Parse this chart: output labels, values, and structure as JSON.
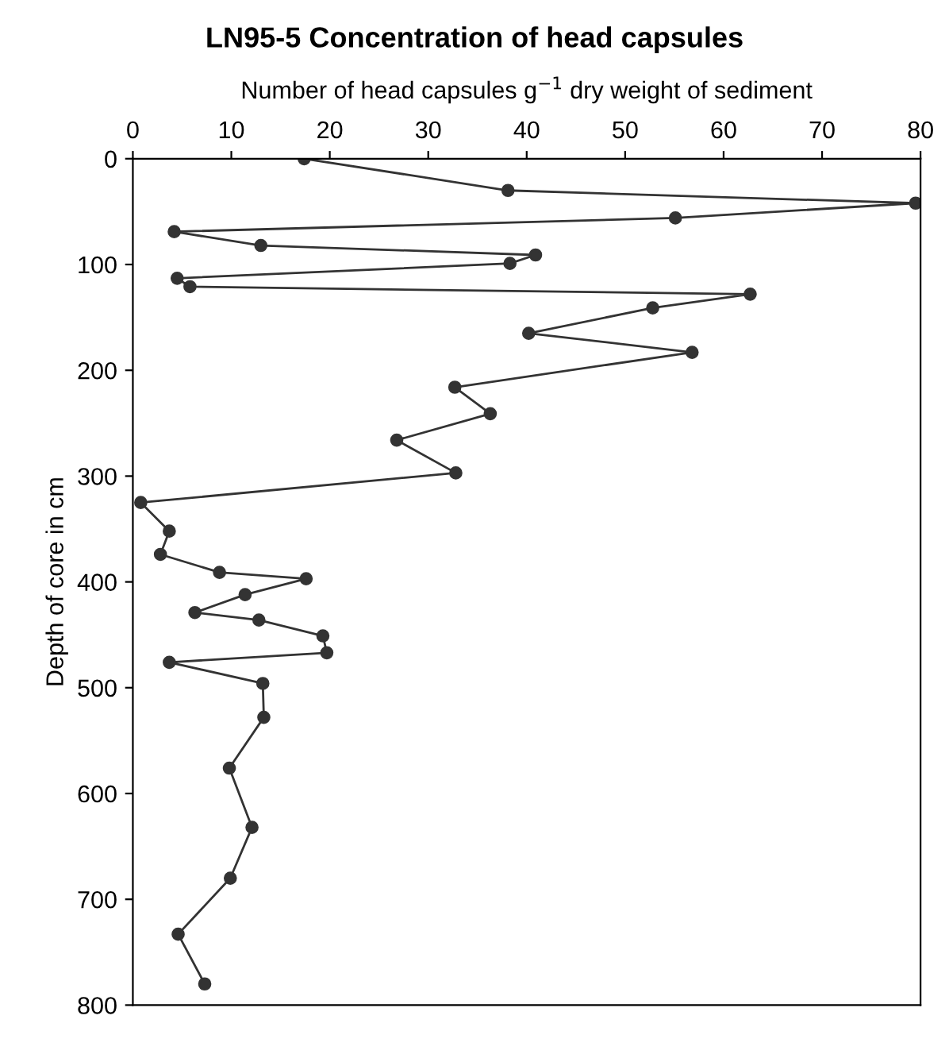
{
  "chart_data": {
    "type": "line",
    "title": "LN95-5 Concentration of head capsules",
    "xlabel": "Number of head capsules g$^{−1}$ dry weight of sediment",
    "ylabel": "Depth of core in cm",
    "series": [
      {
        "color": "#333333",
        "x": [
          17.4,
          38.1,
          79.5,
          55.1,
          4.2,
          13.0,
          40.9,
          38.3,
          4.5,
          5.8,
          62.7,
          52.8,
          40.2,
          56.8,
          32.7,
          36.3,
          26.8,
          32.8,
          0.8,
          3.7,
          2.8,
          8.8,
          17.6,
          11.4,
          6.3,
          12.8,
          19.3,
          19.7,
          3.7,
          13.2,
          13.3,
          9.8,
          12.1,
          9.9,
          4.6,
          7.3
        ],
        "values": [
          0,
          30,
          42,
          56,
          69,
          82,
          91,
          99,
          113,
          121,
          128,
          141,
          165,
          183,
          216,
          241,
          266,
          297,
          325,
          352,
          374,
          391,
          397,
          412,
          429,
          436,
          451,
          467,
          476,
          496,
          528,
          576,
          632,
          680,
          733,
          780
        ]
      }
    ],
    "xlim": [
      0,
      80
    ],
    "xticks": [
      0,
      10,
      20,
      30,
      40,
      50,
      60,
      70,
      80
    ],
    "ylim": [
      800,
      0
    ],
    "yticks": [
      0,
      100,
      200,
      300,
      400,
      500,
      600,
      700,
      800
    ],
    "marker": "circle",
    "line_style": "solid",
    "grid": false,
    "legend": false
  }
}
